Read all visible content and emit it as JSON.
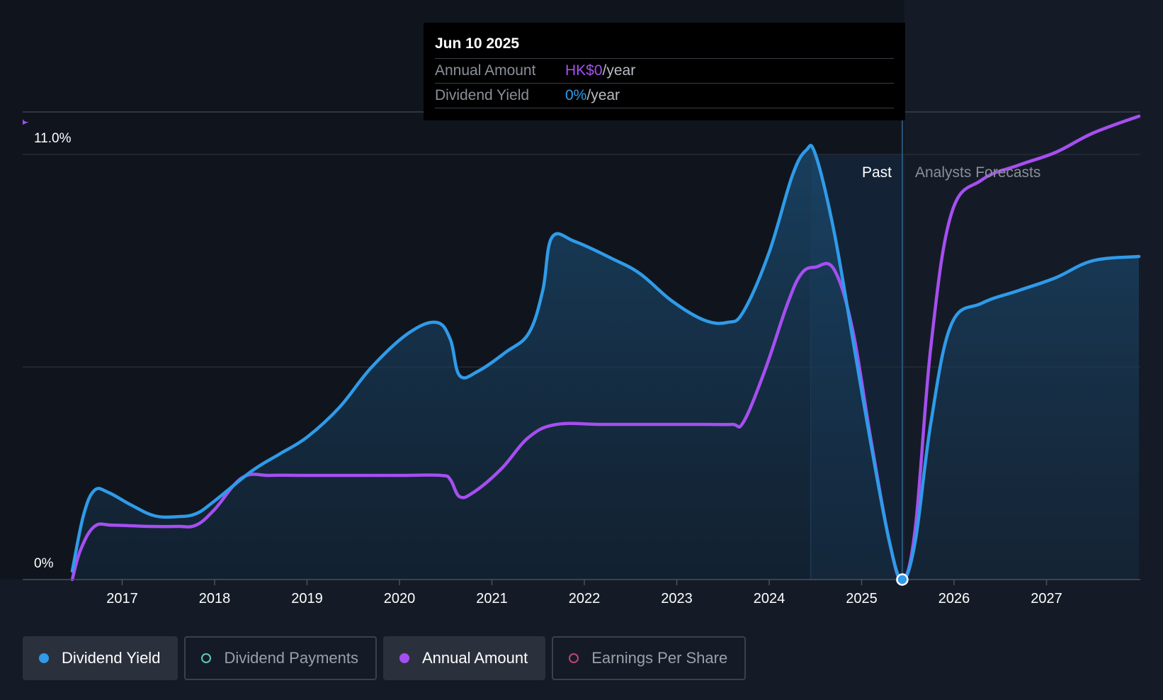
{
  "tooltip": {
    "date": "Jun 10 2025",
    "rows": [
      {
        "label": "Annual Amount",
        "value": "HK$0",
        "unit": "/year",
        "color": "#a54ff0"
      },
      {
        "label": "Dividend Yield",
        "value": "0%",
        "unit": "/year",
        "color": "#2f9be9"
      }
    ]
  },
  "regions": {
    "past_label": "Past",
    "forecast_label": "Analysts Forecasts"
  },
  "legend": [
    {
      "label": "Dividend Yield",
      "color": "#2f9be9",
      "marker": "filled",
      "active": true
    },
    {
      "label": "Dividend Payments",
      "color": "#5ec8c0",
      "marker": "ring",
      "active": false
    },
    {
      "label": "Annual Amount",
      "color": "#a54ff0",
      "marker": "filled",
      "active": true
    },
    {
      "label": "Earnings Per Share",
      "color": "#c0446f",
      "marker": "ring",
      "active": false
    }
  ],
  "chart_data": {
    "type": "line",
    "title": "",
    "xlabel": "",
    "ylabel": "",
    "y_tick_labels": [
      "0%",
      "11.0%"
    ],
    "ylim": [
      0,
      11
    ],
    "xlim": [
      2016.0,
      2028.0
    ],
    "x_ticks": [
      2017,
      2018,
      2019,
      2020,
      2021,
      2022,
      2023,
      2024,
      2025,
      2026,
      2027
    ],
    "gridlines": [
      0,
      5,
      10,
      11
    ],
    "past_end": 2025.44,
    "highlight_start": 2024.45,
    "marker": {
      "x": 2025.44,
      "y": 0
    },
    "series": [
      {
        "name": "Dividend Yield",
        "color": "#2f9be9",
        "filled": true,
        "points": [
          [
            2016.46,
            0.2
          ],
          [
            2016.58,
            1.5
          ],
          [
            2016.7,
            2.1
          ],
          [
            2016.85,
            2.05
          ],
          [
            2017.1,
            1.75
          ],
          [
            2017.35,
            1.5
          ],
          [
            2017.6,
            1.48
          ],
          [
            2017.8,
            1.55
          ],
          [
            2018.0,
            1.85
          ],
          [
            2018.4,
            2.55
          ],
          [
            2018.7,
            2.95
          ],
          [
            2019.0,
            3.35
          ],
          [
            2019.35,
            4.05
          ],
          [
            2019.7,
            5.0
          ],
          [
            2020.1,
            5.8
          ],
          [
            2020.4,
            6.05
          ],
          [
            2020.55,
            5.65
          ],
          [
            2020.65,
            4.8
          ],
          [
            2020.85,
            4.9
          ],
          [
            2021.15,
            5.35
          ],
          [
            2021.4,
            5.8
          ],
          [
            2021.55,
            6.8
          ],
          [
            2021.65,
            8.05
          ],
          [
            2021.9,
            7.95
          ],
          [
            2022.3,
            7.55
          ],
          [
            2022.6,
            7.2
          ],
          [
            2022.95,
            6.55
          ],
          [
            2023.3,
            6.1
          ],
          [
            2023.55,
            6.05
          ],
          [
            2023.72,
            6.3
          ],
          [
            2024.0,
            7.7
          ],
          [
            2024.25,
            9.5
          ],
          [
            2024.4,
            10.1
          ],
          [
            2024.5,
            10.0
          ],
          [
            2024.7,
            8.2
          ],
          [
            2024.9,
            5.7
          ],
          [
            2025.1,
            3.2
          ],
          [
            2025.3,
            0.9
          ],
          [
            2025.44,
            0.0
          ],
          [
            2025.58,
            0.9
          ],
          [
            2025.75,
            3.7
          ],
          [
            2025.97,
            6.0
          ],
          [
            2026.3,
            6.5
          ],
          [
            2026.7,
            6.8
          ],
          [
            2027.1,
            7.1
          ],
          [
            2027.5,
            7.5
          ],
          [
            2028.0,
            7.6
          ]
        ]
      },
      {
        "name": "Annual Amount",
        "color": "#a54ff0",
        "filled": false,
        "points": [
          [
            2016.46,
            0.0
          ],
          [
            2016.55,
            0.7
          ],
          [
            2016.7,
            1.25
          ],
          [
            2016.9,
            1.28
          ],
          [
            2017.3,
            1.25
          ],
          [
            2017.6,
            1.25
          ],
          [
            2017.8,
            1.28
          ],
          [
            2018.0,
            1.65
          ],
          [
            2018.3,
            2.4
          ],
          [
            2018.6,
            2.45
          ],
          [
            2019.0,
            2.45
          ],
          [
            2019.5,
            2.45
          ],
          [
            2020.0,
            2.45
          ],
          [
            2020.45,
            2.45
          ],
          [
            2020.55,
            2.35
          ],
          [
            2020.65,
            1.95
          ],
          [
            2020.8,
            2.05
          ],
          [
            2021.1,
            2.6
          ],
          [
            2021.4,
            3.35
          ],
          [
            2021.7,
            3.65
          ],
          [
            2022.2,
            3.65
          ],
          [
            2022.8,
            3.65
          ],
          [
            2023.3,
            3.65
          ],
          [
            2023.6,
            3.65
          ],
          [
            2023.72,
            3.7
          ],
          [
            2023.95,
            4.9
          ],
          [
            2024.2,
            6.5
          ],
          [
            2024.35,
            7.2
          ],
          [
            2024.5,
            7.35
          ],
          [
            2024.7,
            7.3
          ],
          [
            2024.9,
            5.9
          ],
          [
            2025.1,
            3.3
          ],
          [
            2025.3,
            0.9
          ],
          [
            2025.44,
            0.0
          ],
          [
            2025.58,
            1.2
          ],
          [
            2025.75,
            5.5
          ],
          [
            2025.97,
            8.6
          ],
          [
            2026.3,
            9.4
          ],
          [
            2026.7,
            9.75
          ],
          [
            2027.1,
            10.05
          ],
          [
            2027.5,
            10.5
          ],
          [
            2028.0,
            10.9
          ]
        ]
      }
    ]
  }
}
